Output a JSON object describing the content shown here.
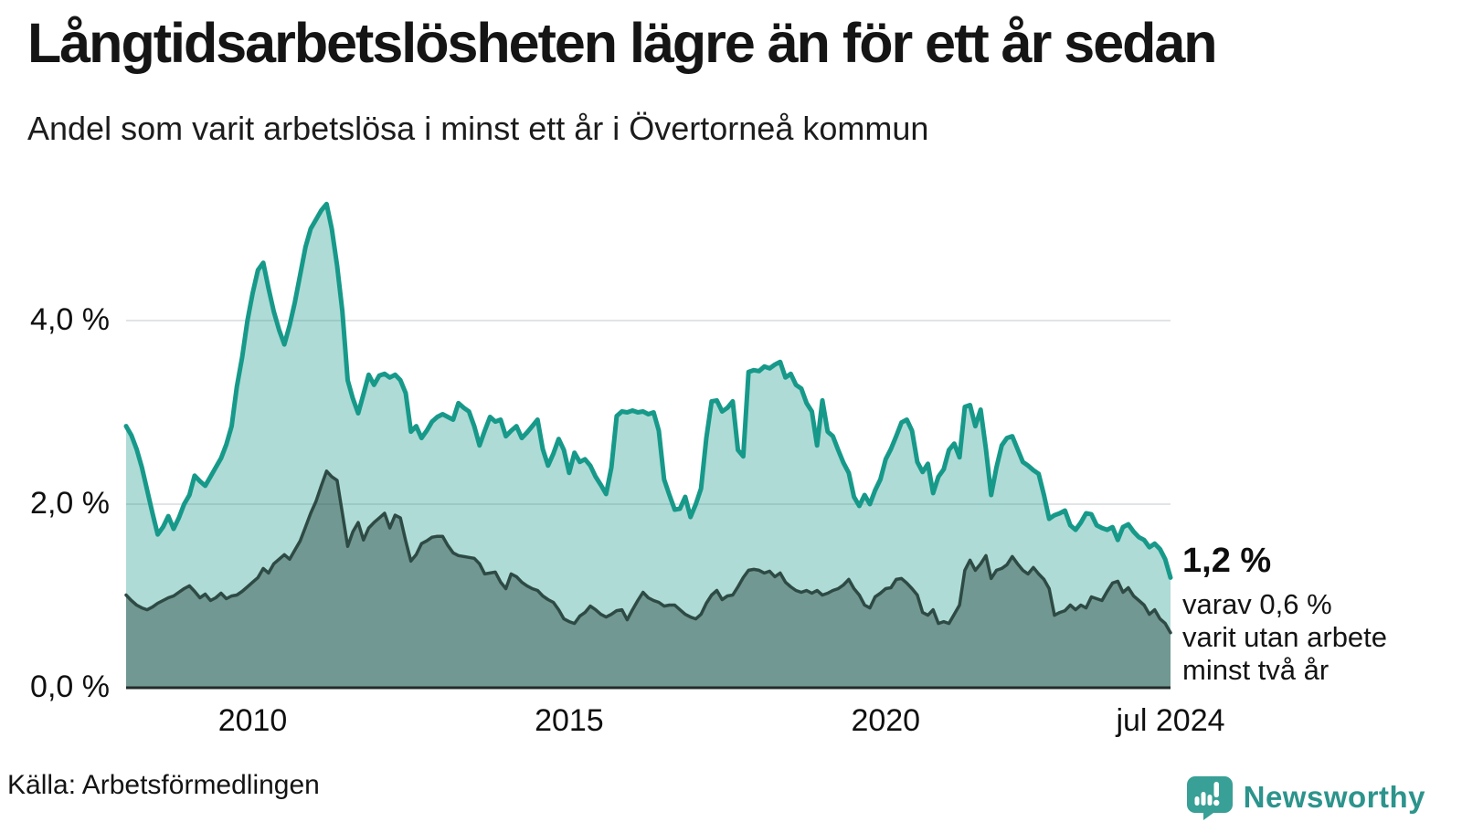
{
  "header": {
    "title": "Långtidsarbetslösheten lägre än för ett år sedan",
    "subtitle": "Andel som varit arbetslösa i minst ett år i Övertorneå kommun"
  },
  "annotation": {
    "value_label": "1,2 %",
    "lines": [
      "varav 0,6 %",
      "varit utan arbete",
      "minst två år"
    ]
  },
  "source": {
    "label": "Källa: Arbetsförmedlingen"
  },
  "branding": {
    "logo_text": "Newsworthy",
    "text_color": "#2c948c",
    "icon_color": "#38a096"
  },
  "chart_data": {
    "type": "area",
    "title": "Långtidsarbetslösheten lägre än för ett år sedan",
    "subtitle": "Andel som varit arbetslösa i minst ett år i Övertorneå kommun",
    "unit": "%",
    "frequency": "monthly",
    "x_start": "2008-01",
    "x_end": "2024-07",
    "ylim": [
      0,
      5.5
    ],
    "grid": true,
    "legend": "none",
    "colors": {
      "gridline": "#e2e4e7",
      "baseline": "#222b2a"
    },
    "y_ticks": [
      {
        "label": "4,0 %",
        "value": 4.0
      },
      {
        "label": "2,0 %",
        "value": 2.0
      },
      {
        "label": "0,0 %",
        "value": 0.0
      }
    ],
    "x_ticks": [
      {
        "label": "2010",
        "month_index": 24
      },
      {
        "label": "2015",
        "month_index": 84
      },
      {
        "label": "2020",
        "month_index": 144
      },
      {
        "label": "jul 2024",
        "month_index": 198
      }
    ],
    "series": [
      {
        "name": "Arbetslösa minst ett år",
        "line_color": "#17998a",
        "fill_color": "rgba(23,153,138,0.35)",
        "stroke_width": 5,
        "end_value": 1.2,
        "values": [
          2.85,
          2.75,
          2.6,
          2.4,
          2.15,
          1.9,
          1.67,
          1.75,
          1.87,
          1.73,
          1.85,
          2.0,
          2.1,
          2.31,
          2.25,
          2.2,
          2.3,
          2.4,
          2.5,
          2.65,
          2.85,
          3.28,
          3.6,
          4.0,
          4.3,
          4.55,
          4.63,
          4.35,
          4.1,
          3.9,
          3.74,
          3.95,
          4.2,
          4.5,
          4.8,
          5.0,
          5.1,
          5.2,
          5.27,
          5.0,
          4.6,
          4.1,
          3.35,
          3.15,
          2.99,
          3.2,
          3.41,
          3.3,
          3.4,
          3.42,
          3.38,
          3.41,
          3.35,
          3.21,
          2.79,
          2.85,
          2.72,
          2.8,
          2.9,
          2.95,
          2.98,
          2.95,
          2.92,
          3.1,
          3.05,
          3.01,
          2.85,
          2.64,
          2.8,
          2.95,
          2.9,
          2.92,
          2.74,
          2.8,
          2.85,
          2.72,
          2.78,
          2.85,
          2.92,
          2.6,
          2.42,
          2.55,
          2.71,
          2.59,
          2.34,
          2.56,
          2.46,
          2.49,
          2.42,
          2.3,
          2.21,
          2.11,
          2.4,
          2.96,
          3.01,
          3.0,
          3.02,
          3.0,
          3.01,
          2.98,
          3.0,
          2.8,
          2.27,
          2.1,
          1.94,
          1.95,
          2.08,
          1.86,
          2.0,
          2.17,
          2.72,
          3.12,
          3.13,
          3.01,
          3.05,
          3.12,
          2.59,
          2.52,
          3.44,
          3.46,
          3.45,
          3.5,
          3.48,
          3.52,
          3.55,
          3.38,
          3.42,
          3.3,
          3.26,
          3.1,
          3.01,
          2.64,
          3.13,
          2.79,
          2.74,
          2.59,
          2.45,
          2.34,
          2.08,
          1.98,
          2.1,
          2.0,
          2.15,
          2.27,
          2.49,
          2.6,
          2.74,
          2.89,
          2.92,
          2.8,
          2.46,
          2.35,
          2.44,
          2.12,
          2.3,
          2.38,
          2.59,
          2.66,
          2.51,
          3.06,
          3.08,
          2.85,
          3.03,
          2.6,
          2.1,
          2.4,
          2.64,
          2.72,
          2.74,
          2.6,
          2.46,
          2.42,
          2.37,
          2.33,
          2.1,
          1.84,
          1.88,
          1.9,
          1.93,
          1.77,
          1.72,
          1.8,
          1.9,
          1.89,
          1.77,
          1.74,
          1.72,
          1.75,
          1.61,
          1.75,
          1.78,
          1.7,
          1.64,
          1.61,
          1.53,
          1.57,
          1.51,
          1.4,
          1.2
        ]
      },
      {
        "name": "Arbetslösa minst två år",
        "line_color": "#2e4a45",
        "fill_color": "rgba(40,70,65,0.45)",
        "stroke_width": 3.5,
        "end_value": 0.6,
        "values": [
          1.01,
          0.95,
          0.9,
          0.87,
          0.85,
          0.88,
          0.92,
          0.95,
          0.98,
          1.0,
          1.04,
          1.08,
          1.11,
          1.05,
          0.98,
          1.02,
          0.95,
          0.98,
          1.03,
          0.97,
          1.0,
          1.01,
          1.05,
          1.1,
          1.15,
          1.2,
          1.3,
          1.25,
          1.35,
          1.4,
          1.45,
          1.4,
          1.5,
          1.6,
          1.75,
          1.9,
          2.03,
          2.2,
          2.36,
          2.3,
          2.26,
          1.9,
          1.54,
          1.7,
          1.8,
          1.61,
          1.74,
          1.8,
          1.85,
          1.9,
          1.74,
          1.88,
          1.85,
          1.6,
          1.38,
          1.45,
          1.57,
          1.6,
          1.64,
          1.65,
          1.65,
          1.55,
          1.47,
          1.44,
          1.43,
          1.42,
          1.41,
          1.35,
          1.24,
          1.25,
          1.26,
          1.15,
          1.08,
          1.24,
          1.21,
          1.15,
          1.11,
          1.08,
          1.06,
          1.0,
          0.96,
          0.93,
          0.85,
          0.75,
          0.72,
          0.7,
          0.78,
          0.82,
          0.89,
          0.85,
          0.8,
          0.77,
          0.8,
          0.84,
          0.85,
          0.74,
          0.85,
          0.95,
          1.04,
          0.98,
          0.95,
          0.93,
          0.89,
          0.9,
          0.9,
          0.85,
          0.8,
          0.77,
          0.75,
          0.8,
          0.92,
          1.01,
          1.06,
          0.96,
          1.0,
          1.01,
          1.1,
          1.2,
          1.28,
          1.29,
          1.28,
          1.25,
          1.27,
          1.21,
          1.25,
          1.15,
          1.1,
          1.06,
          1.04,
          1.06,
          1.03,
          1.06,
          1.01,
          1.03,
          1.06,
          1.08,
          1.12,
          1.18,
          1.08,
          1.01,
          0.9,
          0.87,
          0.99,
          1.03,
          1.08,
          1.09,
          1.18,
          1.19,
          1.14,
          1.08,
          1.01,
          0.82,
          0.79,
          0.85,
          0.7,
          0.72,
          0.7,
          0.8,
          0.9,
          1.28,
          1.39,
          1.28,
          1.35,
          1.44,
          1.19,
          1.28,
          1.3,
          1.34,
          1.43,
          1.35,
          1.28,
          1.24,
          1.31,
          1.24,
          1.18,
          1.08,
          0.79,
          0.82,
          0.84,
          0.9,
          0.85,
          0.9,
          0.87,
          0.99,
          0.97,
          0.95,
          1.05,
          1.14,
          1.16,
          1.04,
          1.09,
          1.0,
          0.95,
          0.9,
          0.8,
          0.85,
          0.75,
          0.7,
          0.6
        ]
      }
    ]
  }
}
